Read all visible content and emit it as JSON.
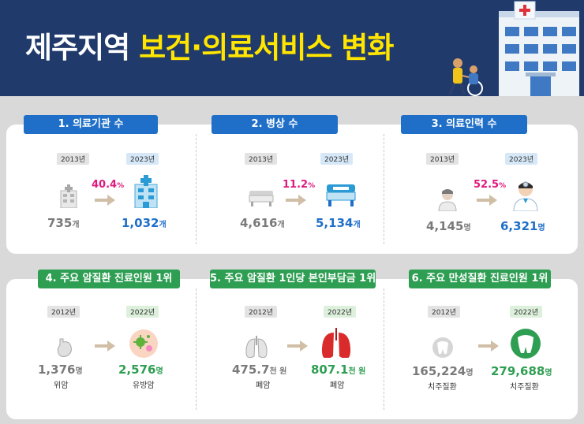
{
  "header": {
    "title_white": "제주지역",
    "title_yellow": "보건·의료서비스 변화"
  },
  "colors": {
    "navy": "#1f3a6b",
    "yellow": "#ffe500",
    "blue": "#1f6fc8",
    "green": "#2e9e52",
    "magenta": "#e0197d",
    "gray": "#7a7a7a"
  },
  "sections": [
    {
      "label": "1. 의료기관 수",
      "from_year": "2013년",
      "to_year": "2023년",
      "change": "40.4",
      "change_unit": "%",
      "from_value": "735",
      "from_unit": "개",
      "to_value": "1,032",
      "to_unit": "개",
      "icon": "hospital-building-icon"
    },
    {
      "label": "2. 병상 수",
      "from_year": "2013년",
      "to_year": "2023년",
      "change": "11.2",
      "change_unit": "%",
      "from_value": "4,616",
      "from_unit": "개",
      "to_value": "5,134",
      "to_unit": "개",
      "icon": "hospital-bed-icon"
    },
    {
      "label": "3. 의료인력 수",
      "from_year": "2013년",
      "to_year": "2023년",
      "change": "52.5",
      "change_unit": "%",
      "from_value": "4,145",
      "from_unit": "명",
      "to_value": "6,321",
      "to_unit": "명",
      "icon": "doctor-icon"
    },
    {
      "label": "4. 주요 암질환 진료인원 1위",
      "from_year": "2012년",
      "to_year": "2022년",
      "from_value": "1,376",
      "from_unit": "명",
      "from_sub": "위암",
      "to_value": "2,576",
      "to_unit": "명",
      "to_sub": "유방암",
      "icon": "cancer-cell-icon"
    },
    {
      "label": "5. 주요 암질환 1인당 본인부담금 1위",
      "from_year": "2012년",
      "to_year": "2022년",
      "from_value": "475.7",
      "from_unit": "천 원",
      "from_sub": "폐암",
      "to_value": "807.1",
      "to_unit": "천 원",
      "to_sub": "폐암",
      "icon": "lungs-icon"
    },
    {
      "label": "6. 주요 만성질환 진료인원 1위",
      "from_year": "2012년",
      "to_year": "2022년",
      "from_value": "165,224",
      "from_unit": "명",
      "from_sub": "치주질환",
      "to_value": "279,688",
      "to_unit": "명",
      "to_sub": "치주질환",
      "icon": "tooth-icon"
    }
  ]
}
